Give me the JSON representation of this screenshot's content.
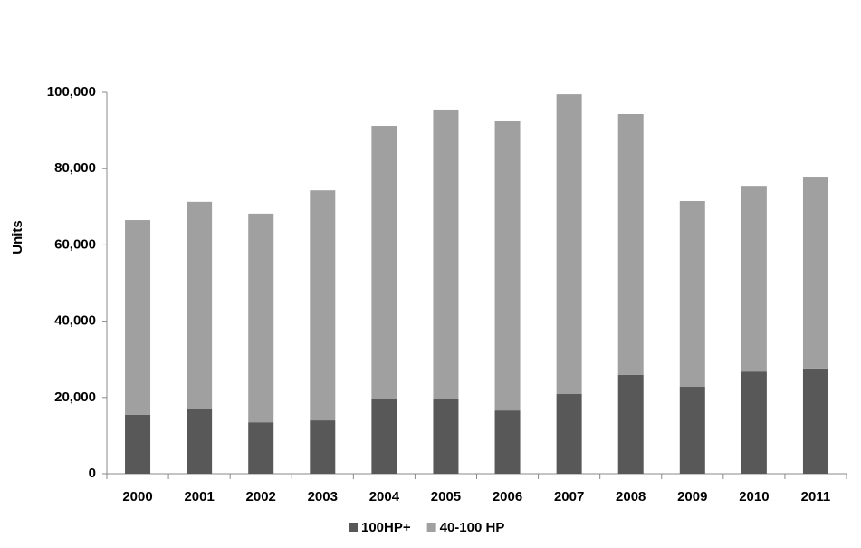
{
  "chart_data": {
    "type": "stacked_bar",
    "y_label": "Units",
    "categories": [
      "2000",
      "2001",
      "2002",
      "2003",
      "2004",
      "2005",
      "2006",
      "2007",
      "2008",
      "2009",
      "2010",
      "2011"
    ],
    "series": [
      {
        "name": "100HP+",
        "color": "#585858",
        "values": [
          15500,
          17000,
          13500,
          14000,
          19700,
          19700,
          16600,
          20900,
          25900,
          22800,
          26800,
          27600
        ]
      },
      {
        "name": "40-100 HP",
        "color": "#a0a0a0",
        "values": [
          51000,
          54300,
          54700,
          60300,
          71500,
          75800,
          75800,
          78600,
          68400,
          48700,
          48700,
          50300
        ]
      }
    ],
    "ylim": [
      0,
      100000
    ],
    "yticks": [
      0,
      {
        "value": 20000,
        "label": "20,000"
      },
      {
        "value": 40000,
        "label": "40,000"
      },
      {
        "value": 60000,
        "label": "60,000"
      },
      {
        "value": 80000,
        "label": "80,000"
      },
      {
        "value": 100000,
        "label": "100,000"
      }
    ],
    "legend": "bottom"
  }
}
